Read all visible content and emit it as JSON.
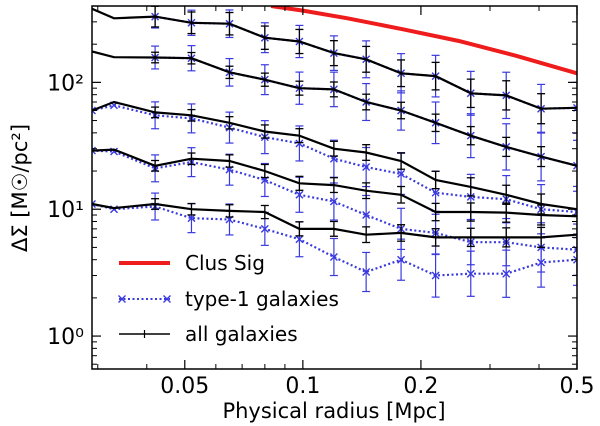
{
  "chart_data": {
    "type": "line",
    "xlabel": "Physical radius [Mpc]",
    "ylabel": "ΔΣ [M☉/pc²]",
    "xscale": "log",
    "yscale": "log",
    "xlim": [
      0.029,
      0.5
    ],
    "ylim": [
      0.55,
      400
    ],
    "x_ticks": [
      0.05,
      0.1,
      0.2,
      0.5
    ],
    "x_tick_labels": [
      "0.05",
      "0.1",
      "0.2",
      "0.5"
    ],
    "y_ticks": [
      1,
      10,
      100
    ],
    "y_tick_labels": [
      "10⁰",
      "10¹",
      "10²"
    ],
    "grid": false,
    "legend_position": "lower-left",
    "legend": [
      {
        "label": "Clus Sig",
        "color": "#ee1c1c",
        "style": "solid-thick"
      },
      {
        "label": "type-1 galaxies",
        "color": "#3a3adf",
        "style": "dotted-x"
      },
      {
        "label": "all galaxies",
        "color": "#000000",
        "style": "solid-plus"
      }
    ],
    "clus_sig": {
      "name": "Clus Sig",
      "color": "#ee1c1c",
      "x": [
        0.083,
        0.1,
        0.13,
        0.18,
        0.25,
        0.35,
        0.5
      ],
      "y": [
        400,
        368,
        320,
        262,
        212,
        162,
        118
      ]
    },
    "all_galaxies": [
      {
        "x": [
          0.029,
          0.033,
          0.042,
          0.052,
          0.065,
          0.08,
          0.098,
          0.12,
          0.145,
          0.178,
          0.218,
          0.268,
          0.33,
          0.405,
          0.5
        ],
        "y": [
          380,
          320,
          330,
          295,
          290,
          225,
          210,
          170,
          152,
          118,
          112,
          82,
          79,
          62,
          63
        ]
      },
      {
        "x": [
          0.029,
          0.033,
          0.042,
          0.052,
          0.065,
          0.08,
          0.098,
          0.12,
          0.145,
          0.178,
          0.218,
          0.268,
          0.33,
          0.405,
          0.5
        ],
        "y": [
          175,
          158,
          157,
          155,
          120,
          105,
          90,
          88,
          70,
          60,
          48,
          38,
          31,
          26,
          22
        ]
      },
      {
        "x": [
          0.029,
          0.033,
          0.042,
          0.052,
          0.065,
          0.08,
          0.098,
          0.12,
          0.145,
          0.178,
          0.218,
          0.268,
          0.33,
          0.405,
          0.5
        ],
        "y": [
          60,
          70,
          58,
          55,
          48,
          41,
          38,
          30,
          28,
          24,
          17,
          15,
          13,
          11,
          10
        ]
      },
      {
        "x": [
          0.029,
          0.033,
          0.042,
          0.052,
          0.065,
          0.08,
          0.098,
          0.12,
          0.145,
          0.178,
          0.218,
          0.268,
          0.33,
          0.405,
          0.5
        ],
        "y": [
          29,
          29.5,
          22,
          25,
          24,
          20,
          16,
          15.5,
          14,
          13,
          9.5,
          9.5,
          9.4,
          9.0,
          8.8
        ]
      },
      {
        "x": [
          0.029,
          0.033,
          0.042,
          0.052,
          0.065,
          0.08,
          0.098,
          0.12,
          0.145,
          0.178,
          0.218,
          0.268,
          0.33,
          0.405,
          0.5
        ],
        "y": [
          11,
          10.2,
          11,
          10,
          9.7,
          9.5,
          7.0,
          7.0,
          6.3,
          6.5,
          6.0,
          6.0,
          6.0,
          6.0,
          6.3
        ]
      }
    ],
    "type1_galaxies": [
      {
        "x": [
          0.042,
          0.052,
          0.065,
          0.08,
          0.098,
          0.12,
          0.145,
          0.178,
          0.218,
          0.268,
          0.33,
          0.405,
          0.5
        ],
        "y": [
          330,
          295,
          290,
          225,
          210,
          170,
          152,
          118,
          112,
          82,
          79,
          62,
          63
        ]
      },
      {
        "x": [
          0.042,
          0.052,
          0.065,
          0.08,
          0.098,
          0.12,
          0.145,
          0.178,
          0.218,
          0.268,
          0.33,
          0.405,
          0.5
        ],
        "y": [
          157,
          155,
          120,
          105,
          90,
          88,
          70,
          60,
          48,
          38,
          31,
          26,
          22
        ]
      },
      {
        "x": [
          0.029,
          0.033,
          0.042,
          0.052,
          0.065,
          0.08,
          0.098,
          0.12,
          0.145,
          0.178,
          0.218,
          0.268,
          0.33,
          0.405,
          0.5
        ],
        "y": [
          60,
          66,
          55,
          52,
          44,
          37,
          33,
          25,
          21.5,
          19,
          13.5,
          12.5,
          12,
          10,
          9.5
        ]
      },
      {
        "x": [
          0.029,
          0.033,
          0.042,
          0.052,
          0.065,
          0.08,
          0.098,
          0.12,
          0.145,
          0.178,
          0.218,
          0.268,
          0.33,
          0.405,
          0.5
        ],
        "y": [
          29,
          28.5,
          21,
          23.5,
          20.5,
          17,
          13,
          11.5,
          9,
          7,
          6.5,
          5.5,
          5.5,
          5.0,
          4.8
        ]
      },
      {
        "x": [
          0.029,
          0.033,
          0.042,
          0.052,
          0.065,
          0.08,
          0.098,
          0.12,
          0.145,
          0.178,
          0.218,
          0.268,
          0.33,
          0.405,
          0.5
        ],
        "y": [
          11,
          10,
          10.5,
          8.5,
          8.3,
          7.0,
          5.8,
          4.2,
          3.2,
          4.0,
          3.0,
          3.1,
          3.1,
          3.8,
          4.0
        ]
      }
    ]
  }
}
